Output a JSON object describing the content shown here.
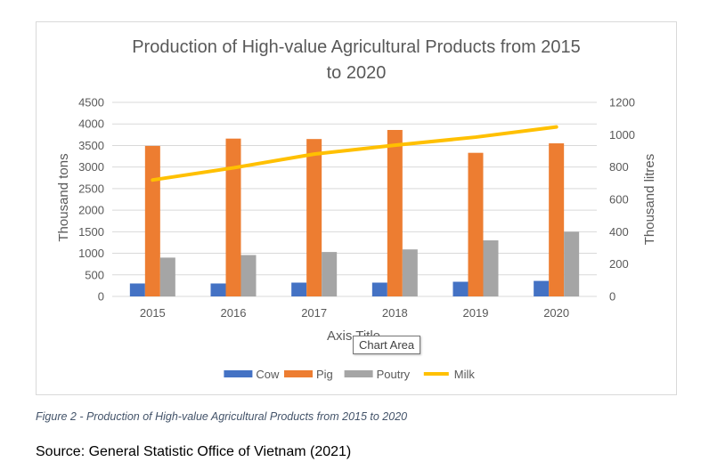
{
  "chart_data": {
    "type": "bar",
    "title_line1": "Production of High-value Agricultural Products from 2015",
    "title_line2": "to 2020",
    "categories": [
      "2015",
      "2016",
      "2017",
      "2018",
      "2019",
      "2020"
    ],
    "xlabel": "Axis Title",
    "ylabel": "Thousand tons",
    "y2label": "Thousand litres",
    "ylim": [
      0,
      4500
    ],
    "yticks": [
      "0",
      "500",
      "1000",
      "1500",
      "2000",
      "2500",
      "3000",
      "3500",
      "4000",
      "4500"
    ],
    "y2lim": [
      0,
      1200
    ],
    "y2ticks": [
      "0",
      "200",
      "400",
      "600",
      "800",
      "1000",
      "1200"
    ],
    "grid": true,
    "legend_position": "bottom",
    "series": [
      {
        "name": "Cow",
        "type": "bar",
        "axis": "left",
        "color": "#4472c4",
        "values": [
          300,
          300,
          320,
          320,
          340,
          360
        ]
      },
      {
        "name": "Pig",
        "type": "bar",
        "axis": "left",
        "color": "#ed7d31",
        "values": [
          3490,
          3660,
          3650,
          3860,
          3330,
          3550
        ]
      },
      {
        "name": "Poutry",
        "type": "bar",
        "axis": "left",
        "color": "#a5a5a5",
        "values": [
          900,
          960,
          1030,
          1090,
          1300,
          1500
        ]
      },
      {
        "name": "Milk",
        "type": "line",
        "axis": "right",
        "color": "#ffc000",
        "values": [
          720,
          795,
          880,
          935,
          985,
          1048
        ]
      }
    ]
  },
  "tooltip": "Chart Area",
  "caption": "Figure 2 - Production of High-value Agricultural Products from 2015 to 2020",
  "source": "Source: General Statistic Office of Vietnam (2021)"
}
